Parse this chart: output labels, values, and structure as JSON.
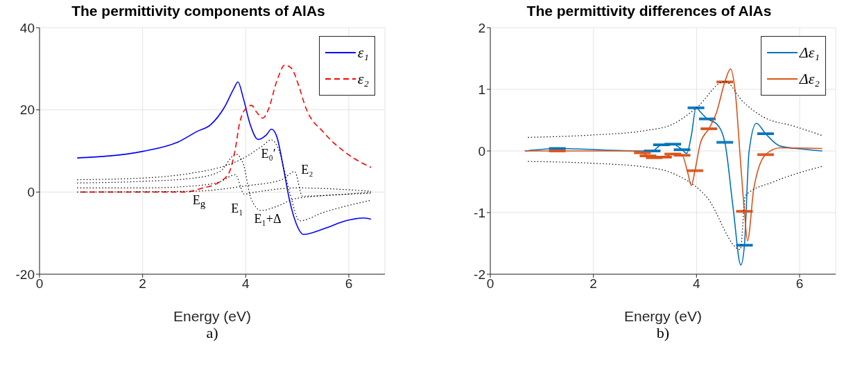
{
  "chart_data": [
    {
      "type": "line",
      "title": "The permittivity components of AlAs",
      "xlabel": "Energy (eV)",
      "xlim": [
        0,
        6.7
      ],
      "xticks": [
        0,
        2,
        4,
        6
      ],
      "ylim": [
        -20,
        40
      ],
      "yticks": [
        -20,
        0,
        20,
        40
      ],
      "grid": true,
      "legend": "top right",
      "series": [
        {
          "name": "ε₁",
          "color": "#0000ff",
          "line_style": "solid",
          "x": [
            0.73,
            2,
            2.69,
            3.05,
            3.32,
            3.59,
            3.77,
            3.85,
            3.95,
            4.08,
            4.24,
            4.4,
            4.5,
            4.6,
            4.74,
            4.85,
            4.98,
            5.12,
            5.52,
            5.97,
            6.29,
            6.43
          ],
          "values": [
            8.3,
            9.9,
            12.2,
            14.7,
            16.4,
            20.7,
            25.2,
            26.8,
            23,
            16.7,
            12.8,
            13.9,
            15.3,
            13.6,
            5.3,
            -2,
            -7.7,
            -10.3,
            -8.9,
            -6.9,
            -6.3,
            -6.6
          ]
        },
        {
          "name": "ε₂",
          "color": "#ff0000",
          "line_style": "dashed",
          "x": [
            0.8,
            2.83,
            3.14,
            3.5,
            3.68,
            3.79,
            3.88,
            3.97,
            4.11,
            4.22,
            4.33,
            4.44,
            4.6,
            4.76,
            4.89,
            5.03,
            5.16,
            5.52,
            5.97,
            6.43
          ],
          "values": [
            0,
            0,
            0.9,
            2.5,
            4.8,
            9.9,
            16.7,
            19.8,
            21.1,
            19.3,
            18,
            20.1,
            26.9,
            30.9,
            30.1,
            25.8,
            20.7,
            14.4,
            9.3,
            6
          ]
        },
        {
          "color": "#000000",
          "line_style": "dotted",
          "x": [
            0.73,
            2,
            3,
            3.5,
            3.95,
            4.3,
            4.5,
            4.65,
            4.85,
            5.05,
            5.5,
            6.43
          ],
          "values": [
            3,
            3.4,
            4.7,
            6,
            8.2,
            11,
            12.7,
            10,
            0,
            -7,
            -5,
            -2
          ]
        },
        {
          "color": "#000000",
          "line_style": "dotted",
          "x": [
            0.73,
            2,
            3,
            3.5,
            3.81,
            3.95,
            4.1,
            4.3,
            4.6,
            5,
            6.43
          ],
          "values": [
            2.2,
            2.6,
            3.4,
            5,
            9.2,
            7,
            -1.5,
            -4.5,
            -3.5,
            -1.5,
            -0.3
          ]
        },
        {
          "color": "#000000",
          "line_style": "dotted",
          "x": [
            0.73,
            2,
            3,
            3.5,
            3.8,
            3.97,
            4.2,
            5,
            6.43
          ],
          "values": [
            1,
            1,
            1.5,
            2.5,
            4.2,
            -0.5,
            0,
            1,
            0.2
          ]
        },
        {
          "color": "#000000",
          "line_style": "dotted",
          "x": [
            0.73,
            3,
            4,
            4.7,
            4.95,
            5.1,
            6.43
          ],
          "values": [
            0,
            0.2,
            1.5,
            3,
            5,
            -1,
            0
          ]
        }
      ],
      "annotations": [
        "E$_{g}$",
        "E₁",
        "E₁+Δ",
        "E₀′",
        "E₂",
        "a)"
      ]
    },
    {
      "type": "line",
      "title": "The permittivity differences of AlAs",
      "xlabel": "Energy (eV)",
      "xlim": [
        0,
        6.7
      ],
      "xticks": [
        0,
        2,
        4,
        6
      ],
      "ylim": [
        -2,
        2
      ],
      "yticks": [
        -2,
        -1,
        0,
        1,
        2
      ],
      "grid": true,
      "legend": "top right",
      "series": [
        {
          "name": "Δε₁",
          "color": "#0072bd",
          "line_style": "solid",
          "x": [
            0.67,
            1.3,
            2.91,
            3.14,
            3.32,
            3.54,
            3.72,
            3.81,
            3.9,
            3.99,
            4.1,
            4.21,
            4.39,
            4.55,
            4.71,
            4.86,
            4.93,
            5.02,
            5.16,
            5.34,
            5.62,
            6.05,
            6.44
          ],
          "values": [
            0,
            0.04,
            0,
            0,
            0.1,
            0.11,
            0.02,
            -0.04,
            0.25,
            0.7,
            0.61,
            0.52,
            0.44,
            0.14,
            -0.92,
            -1.85,
            -1.53,
            -0.01,
            0.45,
            0.28,
            0.08,
            0.03,
            0
          ],
          "errors": [
            null,
            0.01,
            null,
            0.01,
            0.01,
            0.01,
            0.01,
            null,
            null,
            0.01,
            null,
            0.01,
            null,
            0.01,
            null,
            null,
            0.01,
            null,
            null,
            0.01,
            null,
            null,
            null
          ]
        },
        {
          "name": "Δε₂",
          "color": "#d95319",
          "line_style": "solid",
          "x": [
            0.67,
            1.3,
            2.82,
            2.95,
            3.06,
            3.18,
            3.36,
            3.54,
            3.72,
            3.83,
            3.9,
            3.97,
            4.08,
            4.24,
            4.39,
            4.55,
            4.66,
            4.75,
            4.86,
            4.93,
            4.99,
            5.11,
            5.34,
            5.62,
            6.44
          ],
          "values": [
            0,
            0,
            0,
            -0.03,
            -0.08,
            -0.11,
            -0.1,
            -0.05,
            -0.07,
            -0.35,
            -0.56,
            -0.32,
            0.14,
            0.36,
            0.63,
            1.12,
            1.33,
            0.97,
            -0.24,
            -0.98,
            -1.46,
            -0.62,
            -0.06,
            0.05,
            0.04
          ],
          "errors": [
            null,
            0.01,
            null,
            0.01,
            0.01,
            0.01,
            0.01,
            0.01,
            0.01,
            null,
            null,
            0.01,
            null,
            0.01,
            null,
            0.01,
            null,
            null,
            null,
            0.01,
            null,
            null,
            0.01,
            null,
            null
          ]
        },
        {
          "color": "#000000",
          "line_style": "dotted",
          "x": [
            0.73,
            2,
            3,
            3.5,
            4,
            4.55,
            4.9,
            5.3,
            5.9,
            6.44
          ],
          "values": [
            0.22,
            0.26,
            0.33,
            0.42,
            0.7,
            1.13,
            0.8,
            0.55,
            0.4,
            0.25
          ]
        },
        {
          "color": "#000000",
          "line_style": "dotted",
          "x": [
            0.73,
            2,
            3,
            3.5,
            4.2,
            4.85,
            4.95,
            5.5,
            6.44
          ],
          "values": [
            -0.17,
            -0.2,
            -0.26,
            -0.35,
            -0.75,
            -1.6,
            -0.72,
            -0.5,
            -0.25
          ]
        }
      ],
      "annotations": [
        "b)"
      ]
    }
  ]
}
